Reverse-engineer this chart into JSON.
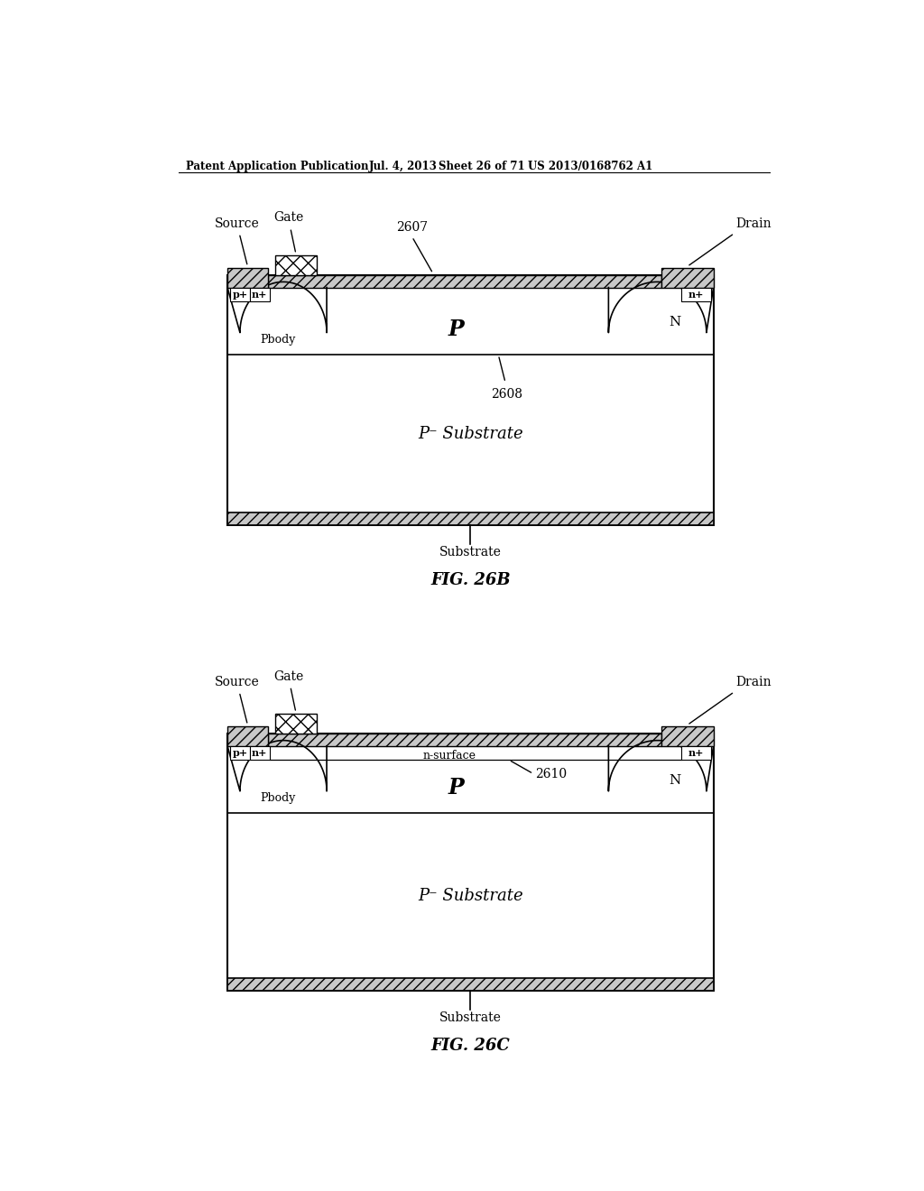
{
  "bg_color": "#ffffff",
  "header_text": "Patent Application Publication",
  "header_date": "Jul. 4, 2013",
  "header_sheet": "Sheet 26 of 71",
  "header_patent": "US 2013/0168762 A1",
  "fig26b": {
    "title": "FIG. 26B",
    "label_source": "Source",
    "label_gate": "Gate",
    "label_drain": "Drain",
    "label_2607": "2607",
    "label_2608": "2608",
    "label_p": "P",
    "label_N": "N",
    "label_pplus": "p+",
    "label_nplus_left": "n+",
    "label_nplus_right": "n+",
    "label_pbody": "Pbody",
    "label_pminus_substrate": "P⁻ Substrate",
    "label_substrate": "Substrate"
  },
  "fig26c": {
    "title": "FIG. 26C",
    "label_source": "Source",
    "label_gate": "Gate",
    "label_drain": "Drain",
    "label_2610": "2610",
    "label_p": "P",
    "label_N": "N",
    "label_pplus": "p+",
    "label_nplus_left": "n+",
    "label_nplus_right": "n+",
    "label_pbody": "Pbody",
    "label_n_surface": "n-surface",
    "label_pminus_substrate": "P⁻ Substrate",
    "label_substrate": "Substrate"
  }
}
